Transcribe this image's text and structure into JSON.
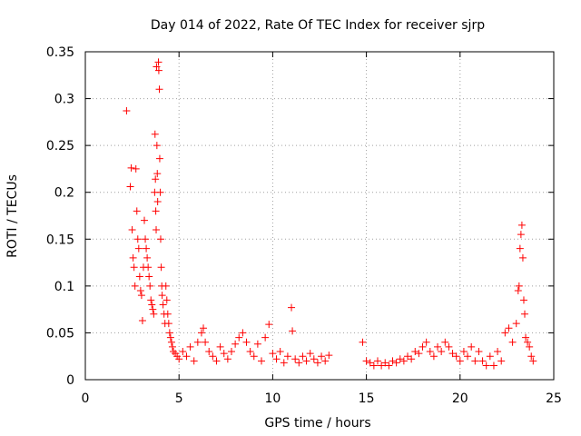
{
  "chart_data": {
    "type": "scatter",
    "title": "Day 014 of 2022, Rate Of TEC Index for receiver sjrp",
    "xlabel": "GPS time / hours",
    "ylabel": "ROTI / TECUs",
    "xlim": [
      0,
      25
    ],
    "ylim": [
      0,
      0.35
    ],
    "xticks": [
      0,
      5,
      10,
      15,
      20,
      25
    ],
    "xtick_labels": [
      "0",
      "5",
      "10",
      "15",
      "20",
      "25"
    ],
    "yticks": [
      0,
      0.05,
      0.1,
      0.15,
      0.2,
      0.25,
      0.3,
      0.35
    ],
    "ytick_labels": [
      "0",
      "0.05",
      "0.1",
      "0.15",
      "0.2",
      "0.25",
      "0.3",
      "0.35"
    ],
    "grid": true,
    "marker": "+",
    "color": "#ff0000",
    "series": [
      {
        "name": "ROTI",
        "points": [
          [
            2.2,
            0.287
          ],
          [
            2.4,
            0.206
          ],
          [
            2.45,
            0.226
          ],
          [
            2.5,
            0.16
          ],
          [
            2.55,
            0.13
          ],
          [
            2.6,
            0.12
          ],
          [
            2.65,
            0.1
          ],
          [
            2.7,
            0.225
          ],
          [
            2.75,
            0.18
          ],
          [
            2.8,
            0.15
          ],
          [
            2.85,
            0.14
          ],
          [
            2.9,
            0.11
          ],
          [
            2.95,
            0.095
          ],
          [
            3.0,
            0.09
          ],
          [
            3.05,
            0.063
          ],
          [
            3.1,
            0.12
          ],
          [
            3.15,
            0.17
          ],
          [
            3.2,
            0.15
          ],
          [
            3.25,
            0.14
          ],
          [
            3.3,
            0.13
          ],
          [
            3.35,
            0.12
          ],
          [
            3.4,
            0.11
          ],
          [
            3.45,
            0.1
          ],
          [
            3.5,
            0.085
          ],
          [
            3.55,
            0.08
          ],
          [
            3.6,
            0.075
          ],
          [
            3.65,
            0.07
          ],
          [
            3.7,
            0.2
          ],
          [
            3.72,
            0.262
          ],
          [
            3.74,
            0.214
          ],
          [
            3.76,
            0.18
          ],
          [
            3.78,
            0.16
          ],
          [
            3.8,
            0.334
          ],
          [
            3.82,
            0.25
          ],
          [
            3.84,
            0.22
          ],
          [
            3.86,
            0.19
          ],
          [
            3.9,
            0.339
          ],
          [
            3.92,
            0.33
          ],
          [
            3.95,
            0.31
          ],
          [
            3.97,
            0.236
          ],
          [
            4.0,
            0.2
          ],
          [
            4.02,
            0.15
          ],
          [
            4.05,
            0.12
          ],
          [
            4.08,
            0.1
          ],
          [
            4.1,
            0.09
          ],
          [
            4.15,
            0.08
          ],
          [
            4.2,
            0.07
          ],
          [
            4.25,
            0.06
          ],
          [
            4.3,
            0.1
          ],
          [
            4.35,
            0.085
          ],
          [
            4.4,
            0.07
          ],
          [
            4.45,
            0.06
          ],
          [
            4.5,
            0.05
          ],
          [
            4.55,
            0.045
          ],
          [
            4.6,
            0.04
          ],
          [
            4.65,
            0.035
          ],
          [
            4.7,
            0.03
          ],
          [
            4.8,
            0.028
          ],
          [
            4.9,
            0.025
          ],
          [
            5.0,
            0.022
          ],
          [
            5.2,
            0.03
          ],
          [
            5.4,
            0.025
          ],
          [
            5.6,
            0.035
          ],
          [
            5.8,
            0.02
          ],
          [
            6.0,
            0.04
          ],
          [
            6.2,
            0.05
          ],
          [
            6.3,
            0.055
          ],
          [
            6.4,
            0.04
          ],
          [
            6.6,
            0.03
          ],
          [
            6.8,
            0.025
          ],
          [
            7.0,
            0.02
          ],
          [
            7.2,
            0.035
          ],
          [
            7.4,
            0.028
          ],
          [
            7.6,
            0.022
          ],
          [
            7.8,
            0.03
          ],
          [
            8.0,
            0.038
          ],
          [
            8.2,
            0.045
          ],
          [
            8.4,
            0.05
          ],
          [
            8.6,
            0.04
          ],
          [
            8.8,
            0.03
          ],
          [
            9.0,
            0.025
          ],
          [
            9.2,
            0.038
          ],
          [
            9.4,
            0.02
          ],
          [
            9.6,
            0.045
          ],
          [
            9.8,
            0.059
          ],
          [
            10.0,
            0.028
          ],
          [
            10.2,
            0.022
          ],
          [
            10.4,
            0.03
          ],
          [
            10.6,
            0.018
          ],
          [
            10.8,
            0.025
          ],
          [
            11.0,
            0.077
          ],
          [
            11.05,
            0.052
          ],
          [
            11.2,
            0.022
          ],
          [
            11.4,
            0.018
          ],
          [
            11.6,
            0.025
          ],
          [
            11.8,
            0.02
          ],
          [
            12.0,
            0.028
          ],
          [
            12.2,
            0.022
          ],
          [
            12.4,
            0.018
          ],
          [
            12.6,
            0.025
          ],
          [
            12.8,
            0.02
          ],
          [
            13.0,
            0.026
          ],
          [
            14.8,
            0.04
          ],
          [
            15.0,
            0.02
          ],
          [
            15.2,
            0.018
          ],
          [
            15.4,
            0.015
          ],
          [
            15.6,
            0.02
          ],
          [
            15.8,
            0.015
          ],
          [
            16.0,
            0.018
          ],
          [
            16.2,
            0.015
          ],
          [
            16.4,
            0.02
          ],
          [
            16.6,
            0.018
          ],
          [
            16.8,
            0.022
          ],
          [
            17.0,
            0.02
          ],
          [
            17.2,
            0.025
          ],
          [
            17.4,
            0.022
          ],
          [
            17.6,
            0.03
          ],
          [
            17.8,
            0.028
          ],
          [
            18.0,
            0.035
          ],
          [
            18.2,
            0.04
          ],
          [
            18.4,
            0.03
          ],
          [
            18.6,
            0.025
          ],
          [
            18.8,
            0.035
          ],
          [
            19.0,
            0.03
          ],
          [
            19.2,
            0.04
          ],
          [
            19.4,
            0.035
          ],
          [
            19.6,
            0.028
          ],
          [
            19.8,
            0.025
          ],
          [
            20.0,
            0.02
          ],
          [
            20.2,
            0.03
          ],
          [
            20.4,
            0.025
          ],
          [
            20.6,
            0.035
          ],
          [
            20.8,
            0.02
          ],
          [
            21.0,
            0.03
          ],
          [
            21.2,
            0.02
          ],
          [
            21.4,
            0.015
          ],
          [
            21.6,
            0.025
          ],
          [
            21.8,
            0.015
          ],
          [
            22.0,
            0.03
          ],
          [
            22.2,
            0.02
          ],
          [
            22.4,
            0.05
          ],
          [
            22.6,
            0.055
          ],
          [
            22.8,
            0.04
          ],
          [
            23.0,
            0.06
          ],
          [
            23.1,
            0.095
          ],
          [
            23.15,
            0.1
          ],
          [
            23.2,
            0.14
          ],
          [
            23.25,
            0.155
          ],
          [
            23.3,
            0.165
          ],
          [
            23.35,
            0.13
          ],
          [
            23.4,
            0.085
          ],
          [
            23.45,
            0.07
          ],
          [
            23.5,
            0.045
          ],
          [
            23.6,
            0.04
          ],
          [
            23.7,
            0.035
          ],
          [
            23.8,
            0.025
          ],
          [
            23.9,
            0.02
          ]
        ]
      }
    ]
  }
}
